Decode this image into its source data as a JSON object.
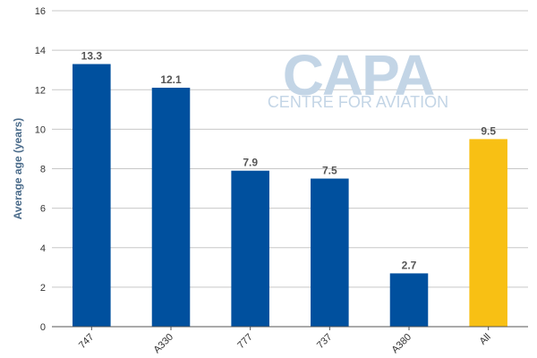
{
  "watermark": {
    "brand": "CAPA",
    "tagline": "CENTRE FOR AVIATION"
  },
  "chart_data": {
    "type": "bar",
    "title": "",
    "xlabel": "",
    "ylabel": "Average age (years)",
    "ylim": [
      0,
      16
    ],
    "yticks": [
      0,
      2,
      4,
      6,
      8,
      10,
      12,
      14,
      16
    ],
    "grid": true,
    "categories": [
      "747",
      "A330",
      "777",
      "737",
      "A380",
      "All"
    ],
    "values": [
      13.3,
      12.1,
      7.9,
      7.5,
      2.7,
      9.5
    ],
    "data_labels": [
      "13.3",
      "12.1",
      "7.9",
      "7.5",
      "2.7",
      "9.5"
    ],
    "colors": [
      "#00509e",
      "#00509e",
      "#00509e",
      "#00509e",
      "#00509e",
      "#f8c014"
    ]
  }
}
